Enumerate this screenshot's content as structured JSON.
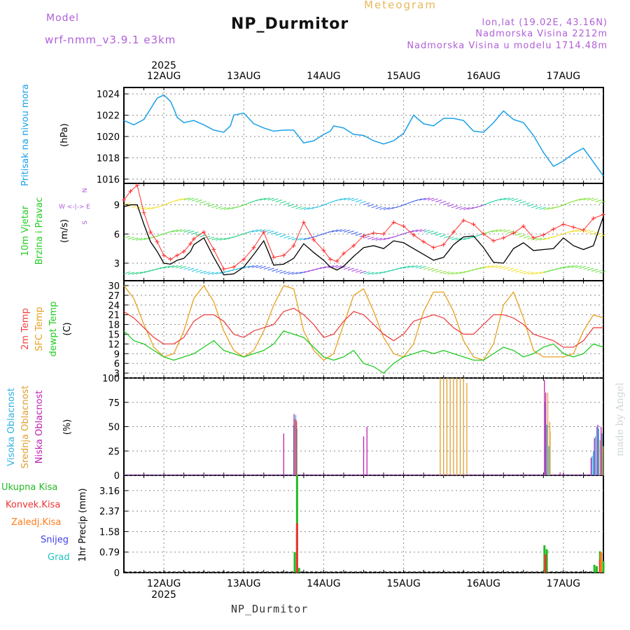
{
  "header": {
    "model_label": "Model",
    "model_code": "wrf-nmm_v3.9.1  e3km",
    "title": "NP_Durmitor",
    "kind": "Meteogram",
    "location": "lon,lat (19.02E, 43.16N)",
    "elevation": "Nadmorska Visina 2212m",
    "model_elevation": "Nadmorska Visina u modelu 1714.48m"
  },
  "footer": {
    "station": "NP_Durmitor",
    "credit": "made by Angel"
  },
  "colors": {
    "pressure": "#1aa0e8",
    "wind_mean": "#000000",
    "wind_gust": "#ff3030",
    "t2m": "#ee4444",
    "tsfc": "#e8a020",
    "dewpt": "#22cc22",
    "cloud_high": "#30b0e0",
    "cloud_mid": "#e0a030",
    "cloud_low": "#c020b0",
    "precip_total": "#22bb22",
    "precip_conv": "#ee3333",
    "precip_frz": "#ff7a1a",
    "snow": "#4040ee",
    "hail": "#20c0c0",
    "grid": "#888888"
  },
  "chart_data": [
    {
      "type": "line",
      "title": "Pritisak na nivou mora",
      "ylabel": "(hPa)",
      "ylim": [
        1015.6,
        1024.6
      ],
      "yticks": [
        "1016",
        "1018",
        "1020",
        "1022",
        "1024"
      ],
      "x_axis": {
        "top_year": "2025",
        "bottom_year": "2025",
        "days": [
          "12AUG",
          "13AUG",
          "14AUG",
          "15AUG",
          "16AUG",
          "17AUG"
        ],
        "range_hours": [
          -12,
          132
        ]
      },
      "series": [
        {
          "name": "MSLP",
          "x": [
            -12,
            -9,
            -6,
            -4,
            -2,
            0,
            2,
            3,
            4,
            6,
            9,
            12,
            15,
            18,
            20,
            21,
            24,
            27,
            30,
            33,
            36,
            39,
            42,
            45,
            48,
            50,
            51,
            54,
            57,
            60,
            63,
            66,
            69,
            72,
            75,
            78,
            81,
            84,
            87,
            90,
            93,
            96,
            99,
            102,
            105,
            108,
            111,
            114,
            117,
            120,
            123,
            126,
            129,
            132
          ],
          "values": [
            1021.5,
            1021.1,
            1021.6,
            1022.6,
            1023.6,
            1023.9,
            1023.3,
            1022.6,
            1021.8,
            1021.3,
            1021.5,
            1021.1,
            1020.6,
            1020.4,
            1021.0,
            1022.0,
            1022.2,
            1021.2,
            1020.8,
            1020.5,
            1020.6,
            1020.6,
            1019.4,
            1019.6,
            1020.2,
            1020.5,
            1021.0,
            1020.8,
            1020.2,
            1020.1,
            1019.6,
            1019.3,
            1019.6,
            1020.3,
            1022.0,
            1021.2,
            1021.0,
            1021.7,
            1021.7,
            1021.5,
            1020.5,
            1020.4,
            1021.3,
            1022.4,
            1021.6,
            1021.3,
            1020.1,
            1018.5,
            1017.2,
            1017.7,
            1018.4,
            1018.9,
            1017.6,
            1016.3
          ]
        }
      ]
    },
    {
      "type": "line",
      "title": "10m Vjetar Brzina i Pravac",
      "ylabel": "(m/s)",
      "compass_label": "N",
      "compass_row": "W <-|-> E",
      "compass_bottom": "S",
      "ylim": [
        1.2,
        11.2
      ],
      "yticks": [
        "3",
        "6",
        "9"
      ],
      "series": [
        {
          "name": "Brzina",
          "x": [
            -12,
            -10,
            -8,
            -6,
            -4,
            -2,
            0,
            2,
            4,
            6,
            8,
            9,
            12,
            15,
            18,
            21,
            24,
            27,
            30,
            33,
            36,
            39,
            42,
            45,
            48,
            50,
            52,
            54,
            57,
            60,
            63,
            66,
            69,
            72,
            75,
            78,
            81,
            84,
            87,
            90,
            93,
            96,
            99,
            102,
            105,
            108,
            111,
            114,
            117,
            120,
            123,
            126,
            129,
            132
          ],
          "values": [
            8.8,
            9.0,
            9.0,
            7.0,
            5.2,
            4.2,
            3.0,
            2.9,
            3.3,
            3.5,
            4.2,
            4.9,
            5.6,
            3.6,
            1.8,
            1.9,
            2.6,
            3.9,
            5.3,
            2.8,
            2.9,
            3.5,
            5.0,
            4.1,
            3.3,
            2.6,
            2.3,
            2.7,
            3.7,
            4.6,
            4.8,
            4.5,
            5.3,
            5.1,
            4.5,
            3.9,
            3.3,
            3.6,
            4.9,
            5.7,
            5.8,
            4.6,
            3.1,
            3.0,
            4.5,
            5.1,
            4.3,
            4.4,
            4.5,
            5.6,
            4.8,
            4.4,
            4.8,
            7.8
          ]
        },
        {
          "name": "Udari",
          "x": [
            -12,
            -10,
            -8,
            -6,
            -4,
            -2,
            0,
            2,
            4,
            6,
            8,
            9,
            12,
            15,
            18,
            21,
            24,
            27,
            30,
            33,
            36,
            39,
            42,
            45,
            48,
            50,
            52,
            54,
            57,
            60,
            63,
            66,
            69,
            72,
            75,
            78,
            81,
            84,
            87,
            90,
            93,
            96,
            99,
            102,
            105,
            108,
            111,
            114,
            117,
            120,
            123,
            126,
            129,
            132
          ],
          "values": [
            9.5,
            10.4,
            11.0,
            8.2,
            6.2,
            5.2,
            3.8,
            3.4,
            3.8,
            4.2,
            5.0,
            5.5,
            6.2,
            4.4,
            2.4,
            2.6,
            3.4,
            4.6,
            6.2,
            3.6,
            3.8,
            4.8,
            7.2,
            5.4,
            4.3,
            3.4,
            3.2,
            4.0,
            4.8,
            5.8,
            6.1,
            6.0,
            7.2,
            6.8,
            5.9,
            5.2,
            4.6,
            4.9,
            6.2,
            7.4,
            7.0,
            6.0,
            5.3,
            5.6,
            6.1,
            6.8,
            5.6,
            5.9,
            6.5,
            7.0,
            6.7,
            6.4,
            7.6,
            8.0
          ]
        }
      ]
    },
    {
      "type": "line",
      "title": "2m Temp / SFC Temp / dewpt Temp",
      "ylabel": "(C)",
      "ylim": [
        1.5,
        31.5
      ],
      "yticks": [
        "3",
        "6",
        "9",
        "12",
        "15",
        "18",
        "21",
        "24",
        "27",
        "30"
      ],
      "series": [
        {
          "name": "2m Temp",
          "x": [
            -12,
            -9,
            -6,
            -3,
            0,
            3,
            6,
            9,
            12,
            15,
            18,
            21,
            24,
            27,
            30,
            33,
            36,
            39,
            42,
            45,
            48,
            51,
            54,
            57,
            60,
            63,
            66,
            69,
            72,
            75,
            78,
            81,
            84,
            87,
            90,
            93,
            96,
            99,
            102,
            105,
            108,
            111,
            114,
            117,
            120,
            123,
            126,
            129,
            132
          ],
          "values": [
            22,
            20,
            17,
            14,
            12,
            12,
            14,
            19,
            21,
            21,
            19,
            15,
            14,
            16,
            17,
            18,
            22,
            23,
            21,
            18,
            14,
            15,
            19,
            22,
            21,
            18,
            15,
            13,
            15,
            19,
            20,
            21,
            20,
            17,
            15,
            15,
            18,
            21,
            21,
            20,
            18,
            15,
            14,
            13,
            11,
            11,
            13,
            17,
            17
          ]
        },
        {
          "name": "SFC Temp",
          "x": [
            -12,
            -9,
            -6,
            -3,
            0,
            3,
            6,
            9,
            12,
            15,
            18,
            21,
            24,
            27,
            30,
            33,
            36,
            39,
            42,
            45,
            48,
            51,
            54,
            57,
            60,
            63,
            66,
            69,
            72,
            75,
            78,
            81,
            84,
            87,
            90,
            93,
            96,
            99,
            102,
            105,
            108,
            111,
            114,
            117,
            120,
            123,
            126,
            129,
            132
          ],
          "values": [
            30,
            26,
            18,
            11,
            8,
            9,
            16,
            26,
            30,
            25,
            16,
            10,
            8,
            10,
            16,
            24,
            30,
            29,
            16,
            10,
            7,
            9,
            18,
            27,
            29,
            22,
            14,
            9,
            8,
            12,
            22,
            28,
            28,
            22,
            13,
            8,
            7,
            12,
            24,
            28,
            20,
            10,
            8,
            8,
            8,
            9,
            16,
            21,
            20
          ]
        },
        {
          "name": "dewpt Temp",
          "x": [
            -12,
            -9,
            -6,
            -3,
            0,
            3,
            6,
            9,
            12,
            15,
            18,
            21,
            24,
            27,
            30,
            33,
            36,
            39,
            42,
            45,
            48,
            51,
            54,
            57,
            60,
            63,
            66,
            69,
            72,
            75,
            78,
            81,
            84,
            87,
            90,
            93,
            96,
            99,
            102,
            105,
            108,
            111,
            114,
            117,
            120,
            123,
            126,
            129,
            132
          ],
          "values": [
            16,
            13,
            12,
            10,
            8,
            7,
            8,
            9,
            11,
            13,
            10,
            9,
            8,
            9,
            10,
            12,
            16,
            15,
            14,
            11,
            8,
            7,
            8,
            10,
            6,
            5,
            3,
            6,
            8,
            9,
            10,
            9,
            10,
            9,
            8,
            7,
            7,
            9,
            11,
            10,
            8,
            9,
            11,
            12,
            9,
            8,
            9,
            12,
            11
          ]
        }
      ]
    },
    {
      "type": "bar",
      "title": "Visoka / Srednja / Niska Oblacnost",
      "ylabel": "(%)",
      "ylim": [
        0,
        100
      ],
      "yticks": [
        "0",
        "25",
        "50",
        "75",
        "100"
      ],
      "series": [
        {
          "name": "Visoka Oblacnost",
          "x": [
            -2,
            39,
            39.6,
            40,
            114.6,
            115,
            115.6,
            128.6,
            129,
            129.6,
            130,
            130.6,
            131.6
          ],
          "values": [
            1,
            52,
            62,
            48,
            75,
            52,
            30,
            20,
            25,
            40,
            50,
            48,
            43
          ]
        },
        {
          "name": "Srednja Oblacnost",
          "x": [
            39.3,
            39.9,
            83,
            84,
            85,
            86,
            87,
            88,
            89,
            90,
            91,
            115.3,
            115.9,
            116,
            130.3,
            131,
            131.3,
            132
          ],
          "values": [
            58,
            55,
            100,
            100,
            100,
            100,
            100,
            100,
            100,
            100,
            95,
            85,
            55,
            45,
            38,
            36,
            46,
            30
          ]
        },
        {
          "name": "Niska Oblacnost",
          "x": [
            36,
            39.1,
            39.7,
            60,
            61,
            114.3,
            114.7,
            119,
            128.3,
            129.3,
            130.3,
            131.3
          ],
          "values": [
            43,
            63,
            57,
            40,
            50,
            98,
            85,
            3,
            18,
            38,
            52,
            50
          ]
        }
      ]
    },
    {
      "type": "bar",
      "title": "1hr Precip",
      "ylabel": "1hr Precip (mm)",
      "ylim": [
        0,
        3.75
      ],
      "yticks": [
        "0",
        "0.79",
        "1.58",
        "2.37",
        "3.16"
      ],
      "legend": [
        "Ukupna Kisa",
        "Konvek.Kisa",
        "Zaledj.Kisa",
        "Snijeg",
        "Grad"
      ],
      "series": [
        {
          "name": "Ukupna Kisa",
          "x": [
            39.3,
            40,
            40.6,
            114.3,
            115,
            129.3,
            130,
            131,
            132
          ],
          "values": [
            0.79,
            3.75,
            0.18,
            1.05,
            0.9,
            0.3,
            0.25,
            0.82,
            0.45
          ]
        },
        {
          "name": "Konvek.Kisa",
          "x": [
            40,
            114.6,
            131
          ],
          "values": [
            1.9,
            0.7,
            0.5
          ]
        },
        {
          "name": "Zaledj.Kisa",
          "x": [
            131.3
          ],
          "values": [
            0.79
          ]
        },
        {
          "name": "Snijeg",
          "x": [],
          "values": []
        },
        {
          "name": "Grad",
          "x": [],
          "values": []
        }
      ]
    }
  ],
  "panel_labels": {
    "pressure": {
      "title": "Pritisak na nivou mora",
      "unit": "(hPa)"
    },
    "wind": {
      "line1": "10m Vjetar",
      "line2": "Brzina i Pravac",
      "unit": "(m/s)",
      "compass_n": "N",
      "compass_row": "W <-|-> E",
      "compass_s": "S"
    },
    "temp": {
      "t2m": "2m Temp",
      "tsfc": "SFC Temp",
      "dew": "dewpt Temp",
      "unit": "(C)"
    },
    "cloud": {
      "high": "Visoka Oblacnost",
      "mid": "Srednja Oblacnost",
      "low": "Niska Oblacnost",
      "unit": "(%)"
    },
    "precip": {
      "total": "Ukupna Kisa",
      "conv": "Konvek.Kisa",
      "frz": "Zaledj.Kisa",
      "snow": "Snijeg",
      "hail": "Grad",
      "unit": "1hr Precip (mm)"
    }
  }
}
